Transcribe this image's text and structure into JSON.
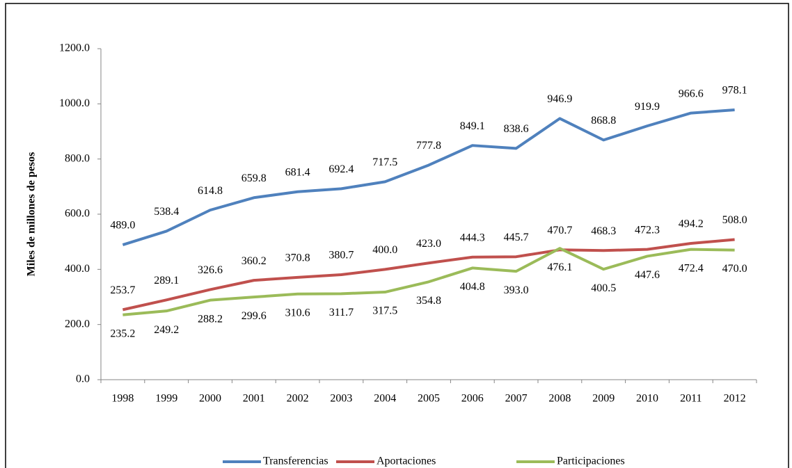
{
  "chart_data": {
    "type": "line",
    "ylabel": "Miles de millones de pesos",
    "categories": [
      "1998",
      "1999",
      "2000",
      "2001",
      "2002",
      "2003",
      "2004",
      "2005",
      "2006",
      "2007",
      "2008",
      "2009",
      "2010",
      "2011",
      "2012"
    ],
    "series": [
      {
        "name": "Transferencias",
        "color": "#4f81bd",
        "values": [
          489.0,
          538.4,
          614.8,
          659.8,
          681.4,
          692.4,
          717.5,
          777.8,
          849.1,
          838.6,
          946.9,
          868.8,
          919.9,
          966.6,
          978.1
        ],
        "value_labels": [
          "489.0",
          "538.4",
          "614.8",
          "659.8",
          "681.4",
          "692.4",
          "717.5",
          "777.8",
          "849.1",
          "838.6",
          "946.9",
          "868.8",
          "919.9",
          "966.6",
          "978.1"
        ]
      },
      {
        "name": "Aportaciones",
        "color": "#c0504d",
        "values": [
          253.7,
          289.1,
          326.6,
          360.2,
          370.8,
          380.7,
          400.0,
          423.0,
          444.3,
          445.7,
          470.7,
          468.3,
          472.3,
          494.2,
          508.0
        ],
        "value_labels": [
          "253.7",
          "289.1",
          "326.6",
          "360.2",
          "370.8",
          "380.7",
          "400.0",
          "423.0",
          "444.3",
          "445.7",
          "470.7",
          "468.3",
          "472.3",
          "494.2",
          "508.0"
        ]
      },
      {
        "name": "Participaciones",
        "color": "#9bbb59",
        "values": [
          235.2,
          249.2,
          288.2,
          299.6,
          310.6,
          311.7,
          317.5,
          354.8,
          404.8,
          393.0,
          476.1,
          400.5,
          447.6,
          472.4,
          470.0
        ],
        "value_labels": [
          "235.2",
          "249.2",
          "288.2",
          "299.6",
          "310.6",
          "311.7",
          "317.5",
          "354.8",
          "404.8",
          "393.0",
          "476.1",
          "400.5",
          "447.6",
          "472.4",
          "470.0"
        ]
      }
    ],
    "ylim": [
      0,
      1200
    ],
    "yticks": [
      {
        "value": 0,
        "label": "0.0"
      },
      {
        "value": 200,
        "label": "200.0"
      },
      {
        "value": 400,
        "label": "400.0"
      },
      {
        "value": 600,
        "label": "600.0"
      },
      {
        "value": 800,
        "label": "800.0"
      },
      {
        "value": 1000,
        "label": "1000.0"
      },
      {
        "value": 1200,
        "label": "1200.0"
      }
    ],
    "legend": "bottom"
  }
}
